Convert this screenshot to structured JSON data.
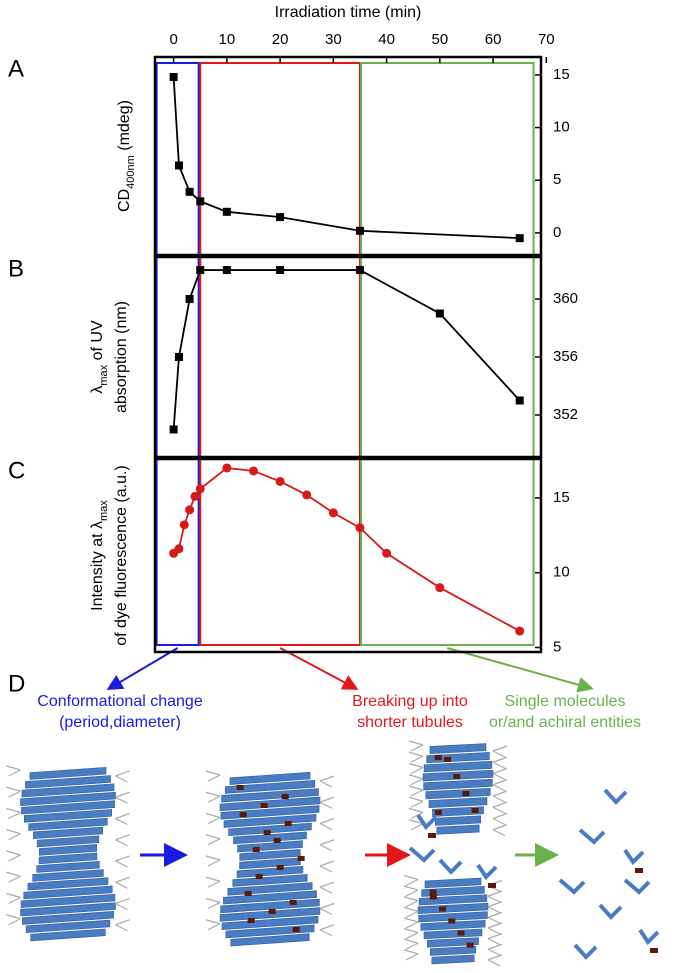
{
  "panel_labels": [
    "A",
    "B",
    "C",
    "D"
  ],
  "regions": [
    {
      "x0": -3.2,
      "x1": 4.7,
      "color": "#1a1ae0",
      "label": [
        "Conformational change",
        "(period,diameter)"
      ]
    },
    {
      "x0": 5,
      "x1": 35,
      "color": "#e0181c",
      "label": [
        "Breaking up into",
        "shorter tubules"
      ]
    },
    {
      "x0": 35.2,
      "x1": 67.6,
      "color": "#6ab04c",
      "label": [
        "Single molecules",
        "or/and achiral entities"
      ]
    }
  ],
  "chart_data": [
    {
      "type": "line",
      "xlabel": "Irradiation time (min)",
      "xlim": [
        -3.5,
        69
      ],
      "xticks": [
        0,
        10,
        20,
        30,
        40,
        50,
        60,
        70
      ],
      "ylabel": [
        [
          {
            "text": "CD"
          },
          {
            "text": "400nm",
            "sub": true
          },
          {
            "text": " (mdeg)"
          }
        ]
      ],
      "ylim": [
        -2.1,
        16.7
      ],
      "yticks": [
        0,
        5,
        10,
        15
      ],
      "marker": "square",
      "color": "#000000",
      "x": [
        0,
        1,
        3,
        5,
        10,
        20,
        35,
        65
      ],
      "values": [
        14.8,
        6.4,
        3.9,
        3.0,
        2.0,
        1.5,
        0.2,
        -0.5
      ]
    },
    {
      "type": "line",
      "ylabel": [
        [
          {
            "text": "λ"
          },
          {
            "text": "max",
            "sub": true
          },
          {
            "text": " of UV"
          }
        ],
        [
          {
            "text": "absorption (nm)"
          }
        ]
      ],
      "ylim": [
        349.1,
        362.9
      ],
      "yticks": [
        352,
        356,
        360
      ],
      "marker": "square",
      "color": "#000000",
      "x": [
        0,
        1,
        3,
        5,
        10,
        20,
        35,
        50,
        65
      ],
      "values": [
        351,
        356,
        360,
        362,
        362,
        362,
        362,
        359,
        353
      ]
    },
    {
      "type": "line",
      "ylabel": [
        [
          {
            "text": "Intensity at λ"
          },
          {
            "text": "max",
            "sub": true
          }
        ],
        [
          {
            "text": "of dye fluorescence (a.u.)"
          }
        ]
      ],
      "ylim": [
        4.7,
        17.6
      ],
      "yticks": [
        5,
        10,
        15
      ],
      "marker": "circle",
      "color": "#d7191c",
      "x": [
        0,
        1,
        2,
        3,
        4,
        5,
        10,
        15,
        20,
        25,
        30,
        35,
        40,
        50,
        65
      ],
      "values": [
        11.3,
        11.6,
        13.2,
        14.2,
        15.1,
        15.6,
        17.0,
        16.8,
        16.1,
        15.2,
        14.0,
        13.0,
        11.3,
        9.0,
        6.1
      ]
    }
  ]
}
